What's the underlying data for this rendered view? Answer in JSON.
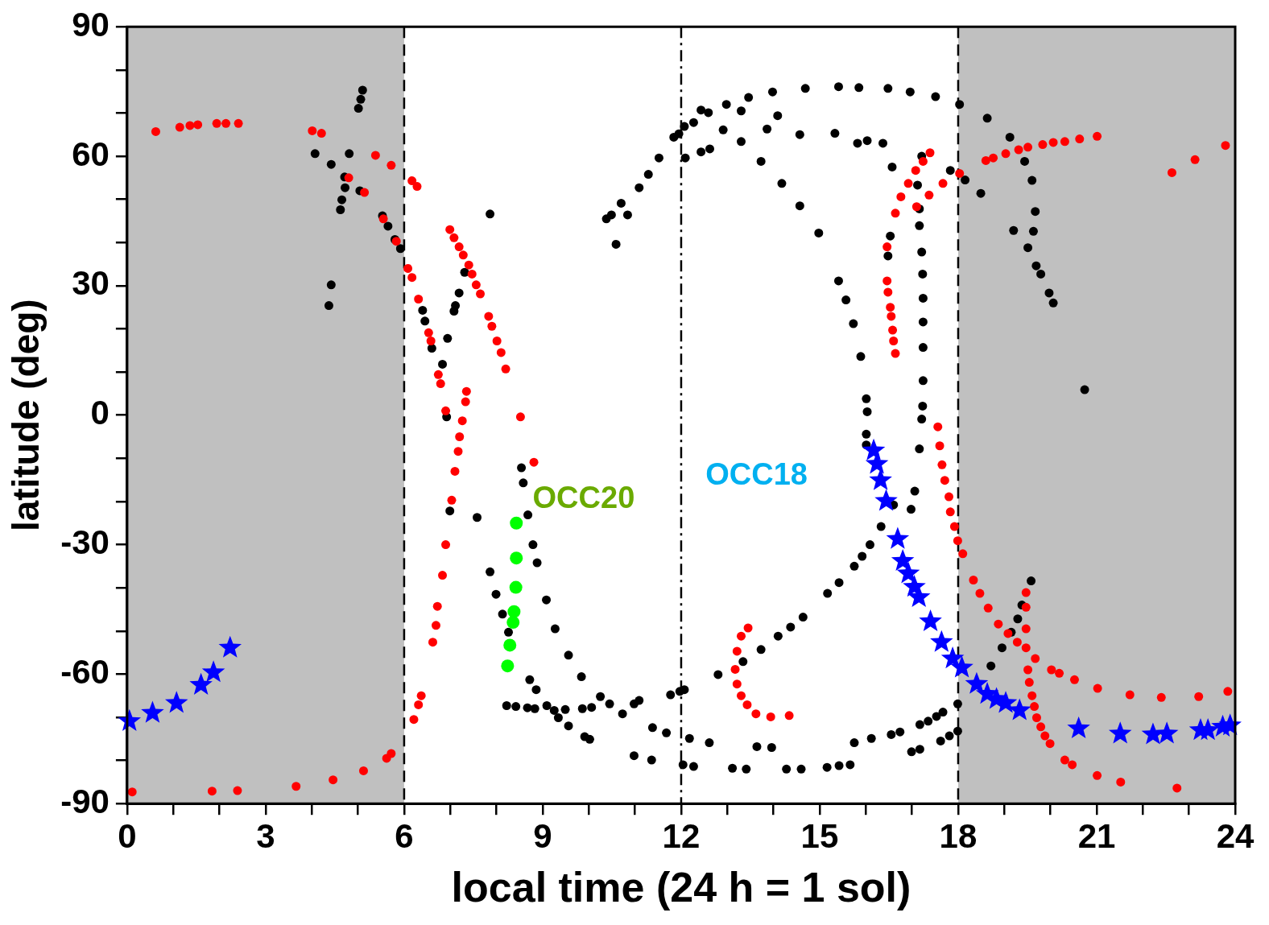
{
  "chart_data": {
    "type": "scatter",
    "xlabel": "local time (24 h = 1 sol)",
    "ylabel": "latitude (deg)",
    "xlim": [
      0,
      24
    ],
    "ylim": [
      -90,
      90
    ],
    "xticks": [
      0,
      {
        "value": 1,
        "label": null
      },
      {
        "value": 2,
        "label": null
      },
      3,
      {
        "value": 4,
        "label": null
      },
      {
        "value": 5,
        "label": null
      },
      6,
      {
        "value": 7,
        "label": null
      },
      {
        "value": 8,
        "label": null
      },
      9,
      {
        "value": 10,
        "label": null
      },
      {
        "value": 11,
        "label": null
      },
      12,
      {
        "value": 13,
        "label": null
      },
      {
        "value": 14,
        "label": null
      },
      15,
      {
        "value": 16,
        "label": null
      },
      {
        "value": 17,
        "label": null
      },
      18,
      {
        "value": 19,
        "label": null
      },
      {
        "value": 20,
        "label": null
      },
      21,
      {
        "value": 22,
        "label": null
      },
      {
        "value": 23,
        "label": null
      },
      24
    ],
    "yticks": [
      -90,
      {
        "value": -80,
        "label": null
      },
      {
        "value": -70,
        "label": null
      },
      -60,
      {
        "value": -50,
        "label": null
      },
      {
        "value": -40,
        "label": null
      },
      -30,
      {
        "value": -20,
        "label": null
      },
      {
        "value": -10,
        "label": null
      },
      0,
      {
        "value": 10,
        "label": null
      },
      {
        "value": 20,
        "label": null
      },
      30,
      {
        "value": 40,
        "label": null
      },
      {
        "value": 50,
        "label": null
      },
      60,
      {
        "value": 70,
        "label": null
      },
      {
        "value": 80,
        "label": null
      },
      90
    ],
    "grid": false,
    "legend": false,
    "bands": [
      {
        "axis": "x",
        "from": 0,
        "to": 6,
        "color": "#c0c0c0"
      },
      {
        "axis": "x",
        "from": 18,
        "to": 24,
        "color": "#c0c0c0"
      }
    ],
    "ref_lines": [
      {
        "axis": "x",
        "value": 6,
        "line_style": "dashed",
        "color": "#000000"
      },
      {
        "axis": "x",
        "value": 12,
        "line_style": "dashdot",
        "color": "#000000"
      },
      {
        "axis": "x",
        "value": 18,
        "line_style": "dashed",
        "color": "#000000"
      }
    ],
    "annotations": [
      "OCC20",
      "OCC18"
    ],
    "series": [
      {
        "color": "#000000",
        "marker": "circle",
        "x": [
          5.1,
          5.06,
          5.01,
          4.07,
          4.42,
          4.81,
          4.71,
          4.72,
          4.65,
          4.62,
          5.04,
          5.53,
          5.65,
          5.8,
          5.92,
          4.42,
          4.37,
          6.4,
          6.45,
          6.6,
          6.83,
          6.94,
          7.31,
          7.19,
          7.11,
          7.08,
          7.86,
          6.92,
          6.99,
          8.54,
          8.58,
          7.58,
          8.68,
          8.79,
          8.88,
          7.86,
          7.99,
          8.13,
          8.26,
          9.08,
          9.27,
          9.56,
          9.84,
          8.72,
          8.86,
          8.22,
          8.42,
          8.67,
          8.83,
          9.09,
          9.25,
          9.34,
          9.56,
          9.49,
          9.86,
          10.06,
          9.91,
          10.02,
          10.25,
          10.45,
          10.73,
          10.98,
          11.09,
          10.98,
          11.36,
          11.38,
          11.68,
          11.77,
          11.97,
          12.07,
          12.04,
          12.18,
          12.61,
          12.27,
          13.11,
          13.41,
          13.64,
          13.96,
          14.28,
          14.6,
          15.16,
          15.42,
          15.66,
          15.75,
          16.12,
          16.55,
          16.74,
          16.99,
          17.17,
          17.17,
          17.35,
          17.53,
          17.67,
          17.62,
          17.81,
          17.99,
          17.99,
          18.71,
          18.95,
          19.15,
          19.29,
          19.38,
          19.58,
          12.8,
          13.34,
          13.73,
          14.1,
          14.37,
          14.64,
          15.17,
          15.42,
          15.75,
          15.92,
          16.09,
          16.33,
          16.6,
          16.98,
          17.06,
          17.16,
          17.21,
          16.01,
          16.01,
          11.95,
          12.27,
          12.59,
          12.98,
          13.46,
          13.98,
          14.69,
          15.41,
          15.85,
          16.48,
          16.96,
          17.51,
          18.03,
          18.63,
          19.12,
          19.44,
          19.6,
          19.67,
          19.63,
          19.51,
          19.69,
          19.79,
          19.97,
          20.06,
          20.74,
          19.2,
          18.49,
          17.83,
          18.15,
          12.91,
          13.86,
          14.57,
          15.33,
          15.82,
          16.03,
          16.37,
          16.57,
          13.3,
          13.73,
          14.18,
          14.57,
          14.98,
          15.41,
          15.57,
          15.73,
          15.89,
          16.01,
          16.03,
          12.09,
          12.43,
          12.62,
          12.43,
          13.3,
          14.09,
          11.09,
          11.29,
          11.52,
          11.84,
          12.07,
          10.38,
          10.49,
          10.7,
          10.84,
          10.59,
          17.21,
          17.12,
          17.16,
          17.16,
          17.21,
          17.23,
          17.24,
          17.24,
          17.24,
          17.24,
          17.23,
          16.53,
          16.48
        ],
        "values": [
          75.3,
          73.2,
          71.1,
          60.6,
          58.1,
          60.6,
          55.2,
          52.7,
          49.9,
          47.6,
          52.0,
          46.2,
          43.8,
          40.7,
          38.6,
          30.2,
          25.4,
          24.3,
          21.8,
          15.5,
          11.8,
          17.8,
          33.1,
          28.3,
          25.4,
          24.1,
          46.6,
          -0.4,
          -22.2,
          -12.2,
          -15.7,
          -23.7,
          -23.1,
          -30.0,
          -34.2,
          -36.3,
          -41.5,
          -46.1,
          -50.3,
          -42.8,
          -49.5,
          -55.6,
          -60.6,
          -61.3,
          -63.6,
          -67.3,
          -67.5,
          -67.8,
          -68.0,
          -67.3,
          -68.4,
          -70.1,
          -72.0,
          -68.2,
          -68.0,
          -67.7,
          -74.5,
          -75.1,
          -65.2,
          -66.9,
          -69.2,
          -66.9,
          -66.1,
          -78.9,
          -79.9,
          -72.4,
          -73.6,
          -64.8,
          -64.0,
          -63.6,
          -81.0,
          -74.9,
          -75.9,
          -81.4,
          -81.8,
          -82.0,
          -76.8,
          -77.0,
          -82.0,
          -82.0,
          -81.6,
          -81.2,
          -81.0,
          -75.9,
          -74.9,
          -74.0,
          -73.4,
          -78.0,
          -77.4,
          -71.7,
          -70.9,
          -69.8,
          -68.8,
          -75.5,
          -74.3,
          -73.2,
          -66.9,
          -58.1,
          -53.9,
          -50.3,
          -47.2,
          -44.0,
          -38.4,
          -60.1,
          -57.1,
          -54.3,
          -51.2,
          -49.1,
          -46.8,
          -41.3,
          -38.8,
          -35.0,
          -32.7,
          -30.0,
          -25.8,
          -20.8,
          -21.8,
          -17.6,
          -7.8,
          -0.9,
          -4.4,
          -6.9,
          65.2,
          67.8,
          70.1,
          72.0,
          73.6,
          74.9,
          75.7,
          76.1,
          75.9,
          75.7,
          74.9,
          73.8,
          72.0,
          68.8,
          64.4,
          58.8,
          54.4,
          47.2,
          42.6,
          38.8,
          34.6,
          32.7,
          28.3,
          26.0,
          5.9,
          42.8,
          51.4,
          56.7,
          54.5,
          66.1,
          66.3,
          65.0,
          65.3,
          63.0,
          63.6,
          63.0,
          57.5,
          63.4,
          58.8,
          53.7,
          48.5,
          42.2,
          31.1,
          26.7,
          21.2,
          13.6,
          3.8,
          0.8,
          59.6,
          61.0,
          61.7,
          70.7,
          70.5,
          69.4,
          52.7,
          55.8,
          59.6,
          64.4,
          66.9,
          45.5,
          46.4,
          49.1,
          46.4,
          39.6,
          60.0,
          53.3,
          47.8,
          43.9,
          37.8,
          32.7,
          27.1,
          21.6,
          15.7,
          8.0,
          2.1,
          41.5,
          36.9
        ]
      },
      {
        "color": "#ff0000",
        "marker": "circle",
        "x": [
          0.62,
          1.14,
          1.36,
          1.53,
          1.94,
          2.14,
          2.41,
          4.01,
          4.21,
          5.38,
          5.72,
          4.8,
          5.14,
          5.55,
          5.83,
          6.08,
          6.17,
          6.17,
          6.28,
          6.31,
          6.53,
          6.58,
          6.74,
          6.79,
          6.9,
          7.35,
          7.33,
          6.99,
          7.08,
          7.19,
          7.28,
          7.4,
          7.47,
          7.56,
          7.65,
          7.83,
          7.9,
          8.01,
          8.1,
          8.2,
          8.52,
          7.26,
          7.2,
          7.17,
          7.1,
          7.03,
          6.9,
          6.83,
          6.72,
          6.69,
          6.62,
          8.81,
          6.37,
          6.31,
          6.21,
          0.11,
          1.84,
          2.39,
          3.66,
          4.46,
          5.12,
          5.62,
          5.72,
          17.39,
          17.24,
          17.08,
          16.92,
          16.76,
          16.64,
          17.1,
          17.37,
          17.67,
          18.03,
          18.6,
          18.76,
          19.03,
          19.31,
          19.51,
          19.83,
          20.06,
          20.31,
          20.63,
          21.01,
          22.63,
          23.13,
          23.79,
          16.46,
          16.46,
          16.48,
          16.53,
          16.55,
          16.58,
          16.6,
          16.64,
          17.56,
          17.6,
          17.65,
          17.71,
          17.8,
          17.83,
          17.92,
          17.99,
          18.1,
          18.33,
          18.47,
          18.65,
          18.87,
          19.08,
          19.28,
          19.47,
          19.67,
          20.02,
          20.19,
          20.52,
          21.02,
          21.72,
          22.4,
          23.21,
          23.84,
          19.47,
          19.47,
          19.47,
          19.51,
          19.54,
          19.6,
          19.65,
          19.7,
          19.79,
          19.88,
          19.99,
          20.31,
          20.47,
          21.01,
          21.52,
          22.74,
          13.45,
          13.3,
          13.21,
          13.17,
          13.21,
          13.3,
          13.43,
          13.62,
          13.94,
          14.34
        ],
        "values": [
          65.7,
          66.7,
          67.1,
          67.3,
          67.6,
          67.6,
          67.6,
          65.9,
          65.3,
          60.2,
          57.9,
          55.0,
          51.6,
          45.5,
          40.3,
          34.0,
          31.9,
          54.3,
          53.0,
          26.9,
          19.1,
          17.2,
          9.4,
          7.3,
          1.0,
          5.5,
          3.1,
          43.0,
          41.1,
          39.0,
          37.1,
          34.8,
          32.7,
          30.2,
          28.1,
          22.9,
          20.6,
          17.2,
          14.5,
          10.7,
          -0.4,
          -1.3,
          -5.0,
          -8.4,
          -13.0,
          -19.7,
          -30.0,
          -37.1,
          -44.3,
          -48.7,
          -52.6,
          -10.9,
          -65.0,
          -67.1,
          -70.5,
          -87.3,
          -87.1,
          -87.0,
          -86.0,
          -84.5,
          -82.4,
          -79.5,
          -78.4,
          60.8,
          58.8,
          56.7,
          53.7,
          50.6,
          46.8,
          48.3,
          51.0,
          53.7,
          56.0,
          59.0,
          59.6,
          60.6,
          61.5,
          62.1,
          62.7,
          63.2,
          63.4,
          64.0,
          64.6,
          56.2,
          59.2,
          62.5,
          39.0,
          31.1,
          28.5,
          25.0,
          22.9,
          19.7,
          17.2,
          14.3,
          -2.7,
          -7.1,
          -11.5,
          -15.1,
          -18.9,
          -22.4,
          -25.8,
          -29.1,
          -32.1,
          -38.2,
          -41.3,
          -44.7,
          -48.4,
          -50.6,
          -52.6,
          -53.9,
          -56.4,
          -59.0,
          -59.8,
          -61.3,
          -63.3,
          -64.8,
          -65.4,
          -65.2,
          -64.0,
          -41.1,
          -44.5,
          -49.5,
          -59.0,
          -61.9,
          -65.0,
          -67.5,
          -70.1,
          -72.2,
          -74.3,
          -76.1,
          -79.9,
          -81.0,
          -83.5,
          -85.0,
          -86.4,
          -49.3,
          -51.2,
          -54.7,
          -58.9,
          -62.3,
          -65.0,
          -67.1,
          -69.2,
          -69.9,
          -69.6
        ]
      },
      {
        "color": "#00ff00",
        "marker": "circle",
        "x": [
          8.43,
          8.43,
          8.42,
          8.38,
          8.36,
          8.29,
          8.24
        ],
        "values": [
          -25.0,
          -33.1,
          -39.9,
          -45.5,
          -48.0,
          -53.3,
          -58.1
        ]
      },
      {
        "color": "#0000ff",
        "marker": "star",
        "x": [
          0.05,
          0.55,
          1.07,
          1.6,
          1.87,
          2.23,
          16.17,
          16.24,
          16.32,
          16.44,
          16.69,
          16.8,
          16.92,
          17.05,
          17.15,
          17.4,
          17.64,
          17.88,
          18.08,
          18.4,
          18.63,
          18.83,
          19.03,
          19.33,
          20.61,
          21.51,
          22.22,
          22.52,
          23.25,
          23.41,
          23.73,
          23.89
        ],
        "values": [
          -70.9,
          -69.0,
          -66.7,
          -62.5,
          -59.6,
          -53.9,
          -8.2,
          -11.3,
          -15.1,
          -19.9,
          -28.7,
          -33.8,
          -36.7,
          -39.8,
          -42.2,
          -47.8,
          -52.6,
          -56.4,
          -58.5,
          -62.3,
          -64.6,
          -65.8,
          -66.7,
          -68.4,
          -72.6,
          -73.8,
          -74.0,
          -73.8,
          -73.0,
          -73.0,
          -72.2,
          -71.9
        ]
      }
    ]
  }
}
